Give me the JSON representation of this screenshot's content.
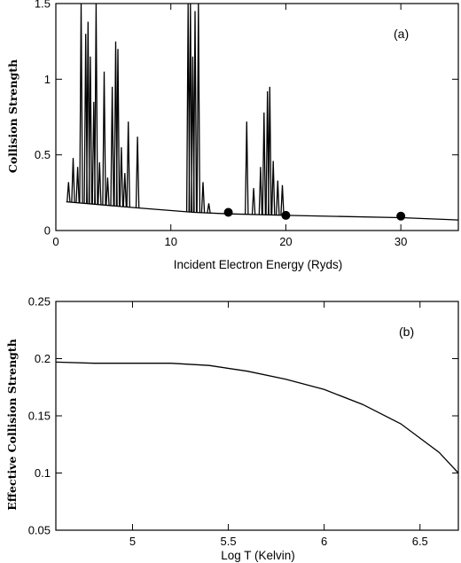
{
  "chart_data": [
    {
      "type": "line",
      "panel_label": "(a)",
      "xlabel": "Incident Electron Energy (Ryds)",
      "ylabel": "Collision Strength",
      "xlim": [
        0,
        35
      ],
      "ylim": [
        0,
        1.5
      ],
      "x_ticks": [
        0,
        10,
        20,
        30
      ],
      "y_ticks": [
        0,
        0.5,
        1,
        1.5
      ],
      "x_tick_labels": [
        "0",
        "10",
        "20",
        "30"
      ],
      "y_tick_labels": [
        "0",
        "0.5",
        "1",
        "1.5"
      ],
      "background": {
        "x": [
          0.9,
          7.0,
          12.0,
          15.0,
          20.0,
          30.0,
          35.0
        ],
        "y": [
          0.19,
          0.15,
          0.12,
          0.11,
          0.1,
          0.085,
          0.07
        ]
      },
      "resonances": [
        {
          "x": 1.1,
          "y": 0.32
        },
        {
          "x": 1.5,
          "y": 0.48
        },
        {
          "x": 1.9,
          "y": 0.42
        },
        {
          "x": 2.2,
          "y": 1.5
        },
        {
          "x": 2.6,
          "y": 1.3
        },
        {
          "x": 2.8,
          "y": 1.38
        },
        {
          "x": 3.0,
          "y": 1.15
        },
        {
          "x": 3.3,
          "y": 0.85
        },
        {
          "x": 3.5,
          "y": 1.5
        },
        {
          "x": 3.8,
          "y": 0.45
        },
        {
          "x": 4.2,
          "y": 1.05
        },
        {
          "x": 4.5,
          "y": 0.35
        },
        {
          "x": 4.9,
          "y": 0.95
        },
        {
          "x": 5.2,
          "y": 1.25
        },
        {
          "x": 5.4,
          "y": 1.2
        },
        {
          "x": 5.7,
          "y": 0.55
        },
        {
          "x": 6.0,
          "y": 0.38
        },
        {
          "x": 6.3,
          "y": 0.72
        },
        {
          "x": 7.1,
          "y": 0.62
        },
        {
          "x": 11.5,
          "y": 1.5
        },
        {
          "x": 11.7,
          "y": 1.5
        },
        {
          "x": 11.9,
          "y": 1.15
        },
        {
          "x": 12.1,
          "y": 1.45
        },
        {
          "x": 12.4,
          "y": 1.5
        },
        {
          "x": 12.8,
          "y": 0.32
        },
        {
          "x": 13.3,
          "y": 0.18
        },
        {
          "x": 16.6,
          "y": 0.72
        },
        {
          "x": 17.2,
          "y": 0.28
        },
        {
          "x": 17.8,
          "y": 0.42
        },
        {
          "x": 18.1,
          "y": 0.78
        },
        {
          "x": 18.4,
          "y": 0.92
        },
        {
          "x": 18.6,
          "y": 0.95
        },
        {
          "x": 18.9,
          "y": 0.46
        },
        {
          "x": 19.3,
          "y": 0.33
        },
        {
          "x": 19.7,
          "y": 0.3
        }
      ],
      "markers": [
        {
          "x": 15,
          "y": 0.12
        },
        {
          "x": 20,
          "y": 0.1
        },
        {
          "x": 30,
          "y": 0.095
        }
      ]
    },
    {
      "type": "line",
      "panel_label": "(b)",
      "xlabel": "Log T (Kelvin)",
      "ylabel": "Effective Collision Strength",
      "xlim": [
        4.6,
        6.7
      ],
      "ylim": [
        0.05,
        0.25
      ],
      "x_ticks": [
        5,
        5.5,
        6,
        6.5
      ],
      "y_ticks": [
        0.05,
        0.1,
        0.15,
        0.2,
        0.25
      ],
      "x_tick_labels": [
        "5",
        "5.5",
        "6",
        "6.5"
      ],
      "y_tick_labels": [
        "0.05",
        "0.1",
        "0.15",
        "0.2",
        "0.25"
      ],
      "x": [
        4.6,
        4.8,
        5.0,
        5.2,
        5.4,
        5.6,
        5.8,
        6.0,
        6.2,
        6.4,
        6.6,
        6.7
      ],
      "y": [
        0.197,
        0.196,
        0.196,
        0.196,
        0.194,
        0.189,
        0.182,
        0.173,
        0.16,
        0.143,
        0.118,
        0.1
      ]
    }
  ]
}
